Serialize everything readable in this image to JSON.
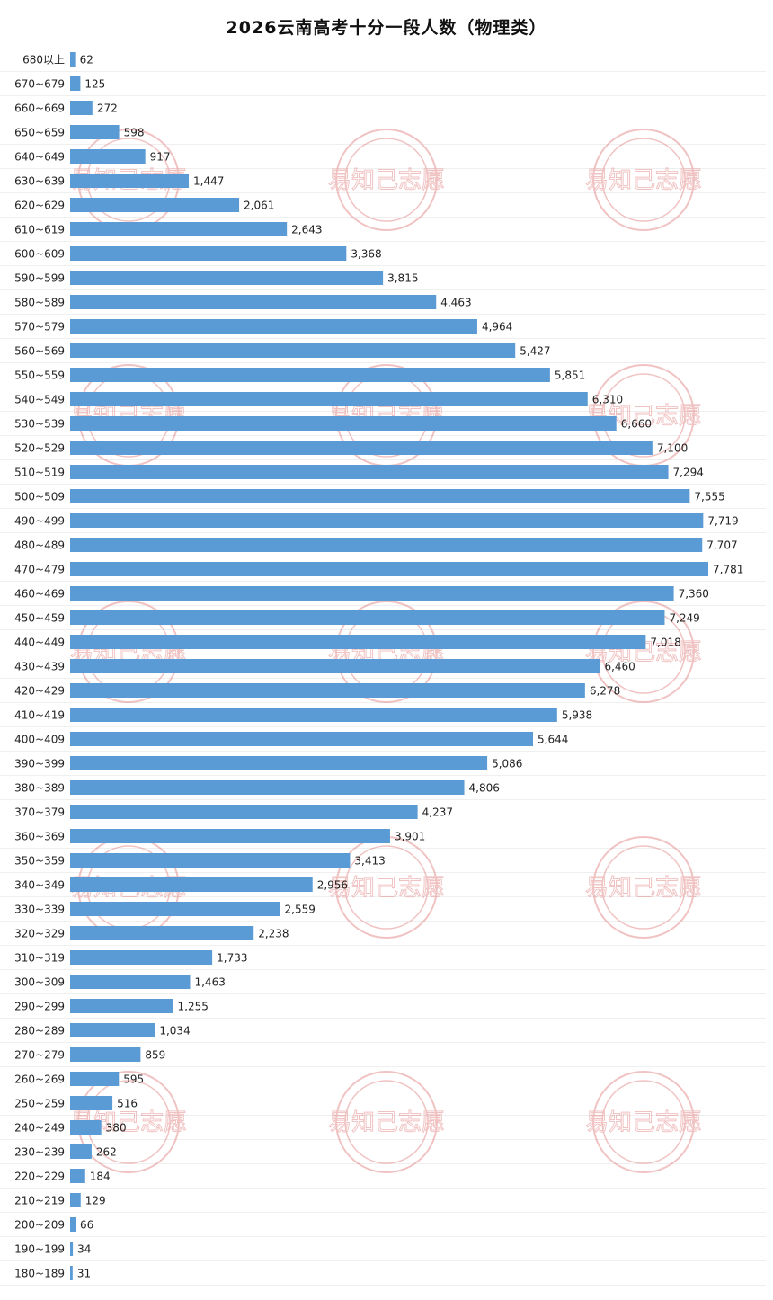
{
  "chart_data": {
    "type": "bar",
    "orientation": "horizontal",
    "title": "2026云南高考十分一段人数（物理类）",
    "xlabel": "",
    "ylabel": "",
    "grid": false,
    "bar_color": "#5b9bd5",
    "categories": [
      "680以上",
      "670~679",
      "660~669",
      "650~659",
      "640~649",
      "630~639",
      "620~629",
      "610~619",
      "600~609",
      "590~599",
      "580~589",
      "570~579",
      "560~569",
      "550~559",
      "540~549",
      "530~539",
      "520~529",
      "510~519",
      "500~509",
      "490~499",
      "480~489",
      "470~479",
      "460~469",
      "450~459",
      "440~449",
      "430~439",
      "420~429",
      "410~419",
      "400~409",
      "390~399",
      "380~389",
      "370~379",
      "360~369",
      "350~359",
      "340~349",
      "330~339",
      "320~329",
      "310~319",
      "300~309",
      "290~299",
      "280~289",
      "270~279",
      "260~269",
      "250~259",
      "240~249",
      "230~239",
      "220~229",
      "210~219",
      "200~209",
      "190~199",
      "180~189"
    ],
    "values": [
      62,
      125,
      272,
      598,
      917,
      1447,
      2061,
      2643,
      3368,
      3815,
      4463,
      4964,
      5427,
      5851,
      6310,
      6660,
      7100,
      7294,
      7555,
      7719,
      7707,
      7781,
      7360,
      7249,
      7018,
      6460,
      6278,
      5938,
      5644,
      5086,
      4806,
      4237,
      3901,
      3413,
      2956,
      2559,
      2238,
      1733,
      1463,
      1255,
      1034,
      859,
      595,
      516,
      380,
      262,
      184,
      129,
      66,
      34,
      31
    ],
    "data_labels": [
      "62",
      "125",
      "272",
      "598",
      "917",
      "1,447",
      "2,061",
      "2,643",
      "3,368",
      "3,815",
      "4,463",
      "4,964",
      "5,427",
      "5,851",
      "6,310",
      "6,660",
      "7,100",
      "7,294",
      "7,555",
      "7,719",
      "7,707",
      "7,781",
      "7,360",
      "7,249",
      "7,018",
      "6,460",
      "6,278",
      "5,938",
      "5,644",
      "5,086",
      "4,806",
      "4,237",
      "3,901",
      "3,413",
      "2,956",
      "2,559",
      "2,238",
      "1,733",
      "1,463",
      "1,255",
      "1,034",
      "859",
      "595",
      "516",
      "380",
      "262",
      "184",
      "129",
      "66",
      "34",
      "31"
    ]
  },
  "watermark": {
    "text": "易知己志愿",
    "color": "#e07a7a"
  }
}
